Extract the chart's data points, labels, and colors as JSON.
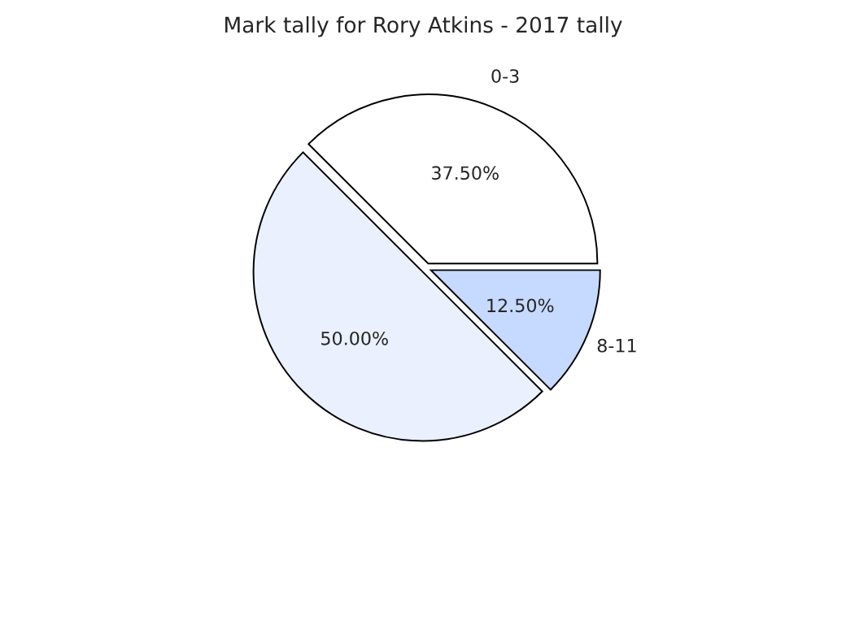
{
  "chart_data": {
    "type": "pie",
    "title": "Mark tally for Rory Atkins - 2017 tally",
    "categories": [
      "0-3",
      null,
      "8-11"
    ],
    "values": [
      37.5,
      50,
      12.5
    ],
    "colors": [
      "#ffffff",
      "#eaf0fe",
      "#c6d9fe"
    ],
    "value_labels": [
      "37.50%",
      "50.00%",
      "12.50%"
    ]
  }
}
